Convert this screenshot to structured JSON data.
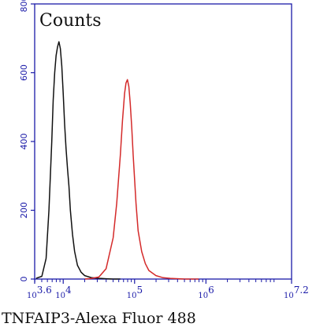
{
  "chart_data": {
    "type": "line",
    "title": "",
    "ylabel": "Counts",
    "xlabel": "TNFAIP3-Alexa Fluor 488",
    "x_scale": "log10",
    "xlim": [
      3.6,
      7.2
    ],
    "ylim": [
      0,
      800
    ],
    "y_ticks": [
      0,
      200,
      400,
      600,
      800
    ],
    "x_ticks": [
      {
        "base": "10",
        "exp": "3.6",
        "value": 3.6
      },
      {
        "base": "10",
        "exp": "4",
        "value": 4
      },
      {
        "base": "10",
        "exp": "5",
        "value": 5
      },
      {
        "base": "10",
        "exp": "6",
        "value": 6
      },
      {
        "base": "10",
        "exp": "7.2",
        "value": 7.2
      }
    ],
    "axis_color": "#1a1aa8",
    "grid": false,
    "legend": "none",
    "series": [
      {
        "color": "#111111",
        "x": [
          3.62,
          3.7,
          3.76,
          3.8,
          3.84,
          3.86,
          3.88,
          3.9,
          3.92,
          3.94,
          3.96,
          3.98,
          4.0,
          4.02,
          4.04,
          4.06,
          4.08,
          4.1,
          4.13,
          4.16,
          4.2,
          4.25,
          4.3,
          4.4,
          4.5,
          4.6,
          4.7,
          4.8
        ],
        "y": [
          2,
          8,
          60,
          200,
          400,
          520,
          600,
          650,
          675,
          690,
          670,
          620,
          540,
          450,
          380,
          320,
          270,
          200,
          130,
          80,
          40,
          20,
          10,
          4,
          2,
          1,
          0,
          0
        ]
      },
      {
        "color": "#d42a2a",
        "x": [
          4.3,
          4.4,
          4.5,
          4.6,
          4.7,
          4.75,
          4.8,
          4.83,
          4.86,
          4.88,
          4.9,
          4.92,
          4.94,
          4.96,
          4.98,
          5.0,
          5.02,
          5.05,
          5.1,
          5.15,
          5.2,
          5.3,
          5.4,
          5.5,
          5.7,
          5.9
        ],
        "y": [
          0,
          2,
          6,
          30,
          120,
          220,
          360,
          460,
          540,
          570,
          580,
          560,
          510,
          440,
          360,
          290,
          220,
          140,
          80,
          45,
          25,
          10,
          4,
          2,
          0,
          0
        ]
      }
    ]
  }
}
